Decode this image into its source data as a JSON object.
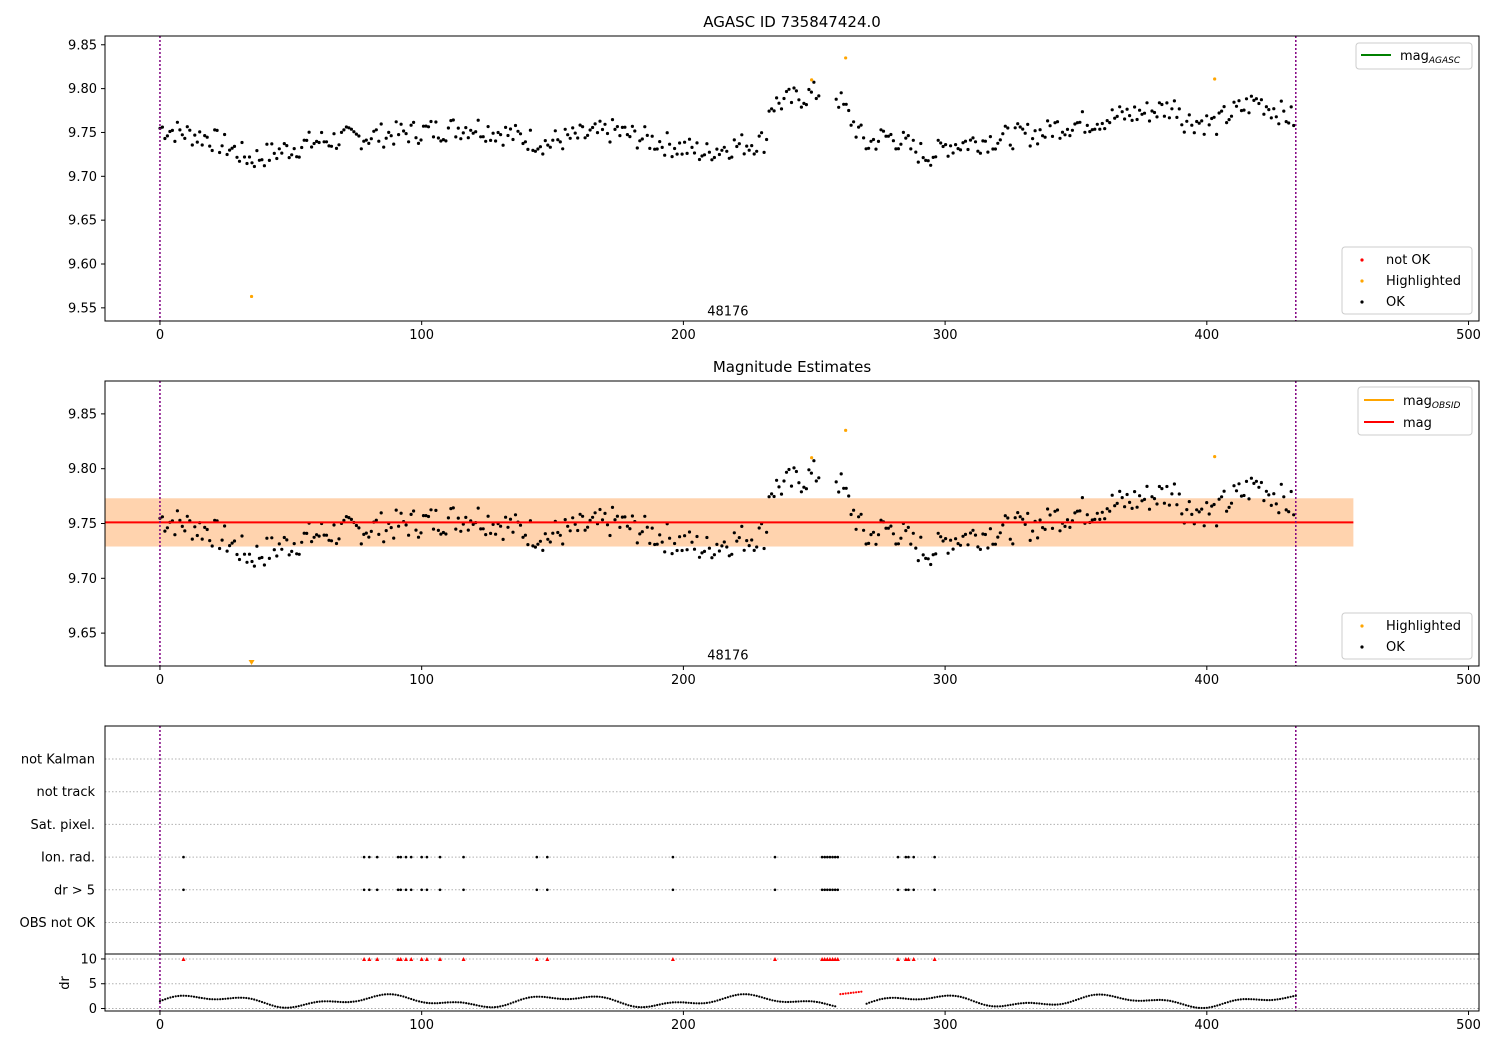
{
  "chart_data": [
    {
      "type": "scatter",
      "title": "AGASC ID 735847424.0",
      "xlim": [
        -21,
        504
      ],
      "ylim": [
        9.535,
        9.86
      ],
      "xticks": [
        0,
        100,
        200,
        300,
        400,
        500
      ],
      "yticks": [
        9.55,
        9.6,
        9.65,
        9.7,
        9.75,
        9.8,
        9.85
      ],
      "ytick_labels": [
        "9.55",
        "9.60",
        "9.65",
        "9.70",
        "9.75",
        "9.80",
        "9.85"
      ],
      "obs_boundaries": [
        0,
        434
      ],
      "obsid_label": {
        "text": "48176",
        "x": 217,
        "y": 9.541
      },
      "legend_upper": {
        "placement": "top-right",
        "entries": [
          {
            "label": "mag",
            "sub": "AGASC",
            "color": "#008000",
            "kind": "line"
          }
        ]
      },
      "legend_lower": {
        "placement": "bottom-right",
        "entries": [
          {
            "label": "not OK",
            "color": "#ff0000",
            "kind": "marker"
          },
          {
            "label": "Highlighted",
            "color": "#ffa500",
            "kind": "marker"
          },
          {
            "label": "OK",
            "color": "#000000",
            "kind": "marker"
          }
        ]
      },
      "highlighted": [
        [
          35,
          9.563
        ],
        [
          249,
          9.81
        ],
        [
          262,
          9.835
        ],
        [
          403,
          9.811
        ]
      ]
    },
    {
      "type": "scatter",
      "title": "Magnitude Estimates",
      "xlim": [
        -21,
        504
      ],
      "ylim": [
        9.62,
        9.88
      ],
      "xticks": [
        0,
        100,
        200,
        300,
        400,
        500
      ],
      "yticks": [
        9.65,
        9.7,
        9.75,
        9.8,
        9.85
      ],
      "ytick_labels": [
        "9.65",
        "9.70",
        "9.75",
        "9.80",
        "9.85"
      ],
      "obs_boundaries": [
        0,
        434
      ],
      "obsid_label": {
        "text": "48176",
        "x": 217,
        "y": 9.626
      },
      "mag_line": {
        "value": 9.751,
        "color": "#ff0000",
        "x": [
          -21,
          456
        ]
      },
      "mag_band": {
        "low": 9.729,
        "high": 9.773,
        "x": [
          -21,
          456
        ]
      },
      "mag_obsid_band": {
        "low": 9.729,
        "high": 9.773,
        "x": [
          -21,
          456
        ]
      },
      "legend_upper": {
        "placement": "top-right",
        "entries": [
          {
            "label": "mag",
            "sub": "OBSID",
            "color": "#ffa500",
            "kind": "line"
          },
          {
            "label": "mag",
            "sub": "",
            "color": "#ff0000",
            "kind": "line"
          }
        ]
      },
      "legend_lower": {
        "placement": "bottom-right",
        "entries": [
          {
            "label": "Highlighted",
            "color": "#ffa500",
            "kind": "marker"
          },
          {
            "label": "OK",
            "color": "#000000",
            "kind": "marker"
          }
        ]
      },
      "highlighted": [
        [
          249,
          9.81
        ],
        [
          262,
          9.835
        ],
        [
          403,
          9.811
        ]
      ],
      "below_range_marker": {
        "x": 35,
        "color": "#ffa500"
      }
    },
    {
      "type": "scatter",
      "title": "",
      "xlim": [
        -21,
        504
      ],
      "xticks": [
        0,
        100,
        200,
        300,
        400,
        500
      ],
      "obs_boundaries": [
        0,
        434
      ],
      "flag_rows": [
        "not Kalman",
        "not track",
        "Sat. pixel.",
        "Ion. rad.",
        "dr > 5",
        "OBS not OK"
      ],
      "flags": {
        "Ion. rad.": [
          9,
          78,
          80,
          83,
          91,
          92,
          94,
          96,
          100,
          102,
          107,
          116,
          144,
          148,
          196,
          235,
          253,
          254,
          255,
          256,
          257,
          258,
          259,
          282,
          285,
          286,
          288,
          296
        ],
        "dr > 5": [
          9,
          78,
          80,
          83,
          91,
          92,
          94,
          96,
          100,
          102,
          107,
          116,
          144,
          148,
          196,
          235,
          253,
          254,
          255,
          256,
          257,
          258,
          259,
          282,
          285,
          286,
          288,
          296
        ]
      },
      "dr_axis": {
        "ylabel": "dr",
        "ylim": [
          -0.5,
          11
        ],
        "yticks": [
          0,
          5,
          10
        ],
        "ytick_labels": [
          "0",
          "5",
          "10"
        ]
      },
      "dr_capped": [
        9,
        78,
        80,
        83,
        91,
        92,
        94,
        96,
        100,
        102,
        107,
        116,
        144,
        148,
        196,
        235,
        253,
        254,
        255,
        256,
        257,
        258,
        259,
        282,
        285,
        286,
        288,
        296
      ],
      "dr_red_segment": {
        "x": [
          260,
          268
        ],
        "y": [
          2.9,
          3.4
        ]
      }
    }
  ]
}
